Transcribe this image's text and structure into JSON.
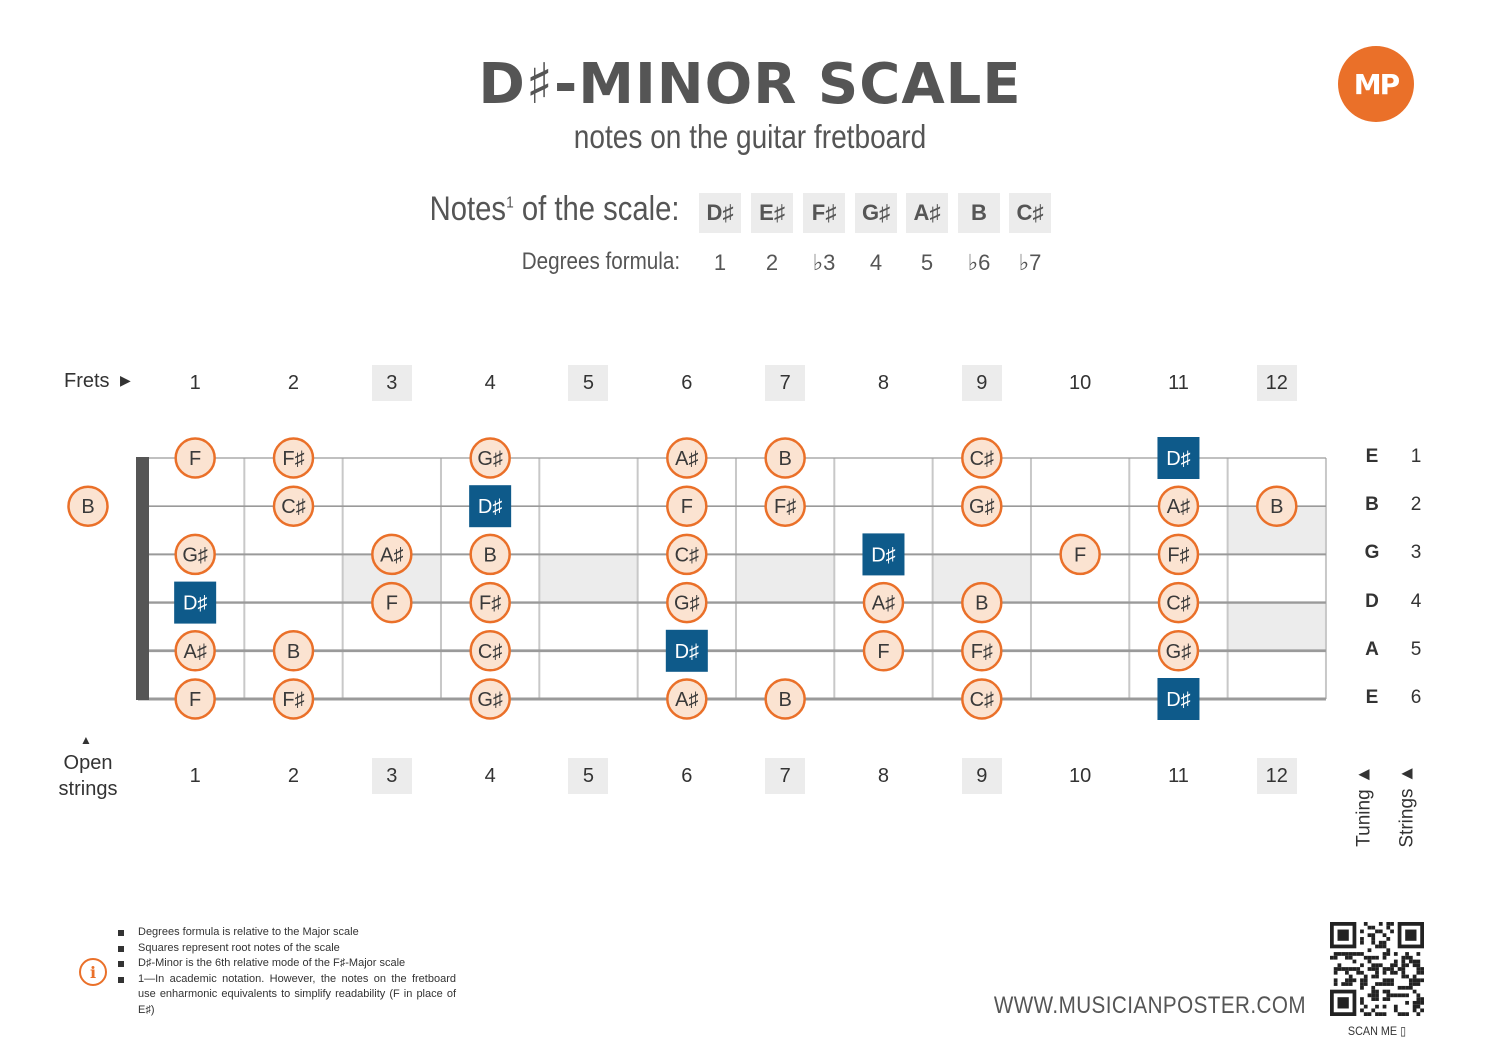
{
  "header": {
    "title": "D♯-MINOR SCALE",
    "subtitle": "notes on the guitar fretboard",
    "logo_text": "MP"
  },
  "scale": {
    "notes_label": "Notes",
    "notes_label_sup": "1",
    "notes_label_suffix": " of the scale:",
    "degrees_label": "Degrees formula:",
    "notes": [
      "D♯",
      "E♯",
      "F♯",
      "G♯",
      "A♯",
      "B",
      "C♯"
    ],
    "degrees": [
      "1",
      "2",
      "♭3",
      "4",
      "5",
      "♭6",
      "♭7"
    ]
  },
  "fretboard": {
    "frets_label": "Frets",
    "open_label_1": "Open",
    "open_label_2": "strings",
    "tuning_label": "Tuning",
    "strings_label": "Strings",
    "fret_numbers": [
      "1",
      "2",
      "3",
      "4",
      "5",
      "6",
      "7",
      "8",
      "9",
      "10",
      "11",
      "12"
    ],
    "shaded_frets": [
      3,
      5,
      7,
      9,
      12
    ],
    "tuning": [
      "E",
      "B",
      "G",
      "D",
      "A",
      "E"
    ],
    "string_numbers": [
      "1",
      "2",
      "3",
      "4",
      "5",
      "6"
    ],
    "open_notes": [
      {
        "string": 2,
        "note": "B",
        "root": false
      }
    ],
    "notes": [
      {
        "string": 1,
        "fret": 1,
        "note": "F",
        "root": false
      },
      {
        "string": 1,
        "fret": 2,
        "note": "F♯",
        "root": false
      },
      {
        "string": 1,
        "fret": 4,
        "note": "G♯",
        "root": false
      },
      {
        "string": 1,
        "fret": 6,
        "note": "A♯",
        "root": false
      },
      {
        "string": 1,
        "fret": 7,
        "note": "B",
        "root": false
      },
      {
        "string": 1,
        "fret": 9,
        "note": "C♯",
        "root": false
      },
      {
        "string": 1,
        "fret": 11,
        "note": "D♯",
        "root": true
      },
      {
        "string": 2,
        "fret": 2,
        "note": "C♯",
        "root": false
      },
      {
        "string": 2,
        "fret": 4,
        "note": "D♯",
        "root": true
      },
      {
        "string": 2,
        "fret": 6,
        "note": "F",
        "root": false
      },
      {
        "string": 2,
        "fret": 7,
        "note": "F♯",
        "root": false
      },
      {
        "string": 2,
        "fret": 9,
        "note": "G♯",
        "root": false
      },
      {
        "string": 2,
        "fret": 11,
        "note": "A♯",
        "root": false
      },
      {
        "string": 2,
        "fret": 12,
        "note": "B",
        "root": false
      },
      {
        "string": 3,
        "fret": 1,
        "note": "G♯",
        "root": false
      },
      {
        "string": 3,
        "fret": 3,
        "note": "A♯",
        "root": false
      },
      {
        "string": 3,
        "fret": 4,
        "note": "B",
        "root": false
      },
      {
        "string": 3,
        "fret": 6,
        "note": "C♯",
        "root": false
      },
      {
        "string": 3,
        "fret": 8,
        "note": "D♯",
        "root": true
      },
      {
        "string": 3,
        "fret": 10,
        "note": "F",
        "root": false
      },
      {
        "string": 3,
        "fret": 11,
        "note": "F♯",
        "root": false
      },
      {
        "string": 4,
        "fret": 1,
        "note": "D♯",
        "root": true
      },
      {
        "string": 4,
        "fret": 3,
        "note": "F",
        "root": false
      },
      {
        "string": 4,
        "fret": 4,
        "note": "F♯",
        "root": false
      },
      {
        "string": 4,
        "fret": 6,
        "note": "G♯",
        "root": false
      },
      {
        "string": 4,
        "fret": 8,
        "note": "A♯",
        "root": false
      },
      {
        "string": 4,
        "fret": 9,
        "note": "B",
        "root": false
      },
      {
        "string": 4,
        "fret": 11,
        "note": "C♯",
        "root": false
      },
      {
        "string": 5,
        "fret": 1,
        "note": "A♯",
        "root": false
      },
      {
        "string": 5,
        "fret": 2,
        "note": "B",
        "root": false
      },
      {
        "string": 5,
        "fret": 4,
        "note": "C♯",
        "root": false
      },
      {
        "string": 5,
        "fret": 6,
        "note": "D♯",
        "root": true
      },
      {
        "string": 5,
        "fret": 8,
        "note": "F",
        "root": false
      },
      {
        "string": 5,
        "fret": 9,
        "note": "F♯",
        "root": false
      },
      {
        "string": 5,
        "fret": 11,
        "note": "G♯",
        "root": false
      },
      {
        "string": 6,
        "fret": 1,
        "note": "F",
        "root": false
      },
      {
        "string": 6,
        "fret": 2,
        "note": "F♯",
        "root": false
      },
      {
        "string": 6,
        "fret": 4,
        "note": "G♯",
        "root": false
      },
      {
        "string": 6,
        "fret": 6,
        "note": "A♯",
        "root": false
      },
      {
        "string": 6,
        "fret": 7,
        "note": "B",
        "root": false
      },
      {
        "string": 6,
        "fret": 9,
        "note": "C♯",
        "root": false
      },
      {
        "string": 6,
        "fret": 11,
        "note": "D♯",
        "root": true
      }
    ]
  },
  "footer": {
    "notes": [
      "Degrees formula is relative to the Major scale",
      "Squares represent root notes of the scale",
      "D♯-Minor is the 6th relative mode of the F♯-Major scale",
      "1—In academic notation. However, the notes on the fretboard use enharmonic equivalents to simplify readability (F in place of E♯)"
    ],
    "website": "WWW.MUSICIANPOSTER.COM",
    "scan_label": "SCAN ME",
    "info_icon": "info-icon"
  },
  "colors": {
    "accent": "#ea7029",
    "note_fill": "#fbe3d1",
    "root_fill": "#0e5a8a",
    "string": "#9a9a9a",
    "nut": "#555555",
    "shade": "#ececec"
  }
}
